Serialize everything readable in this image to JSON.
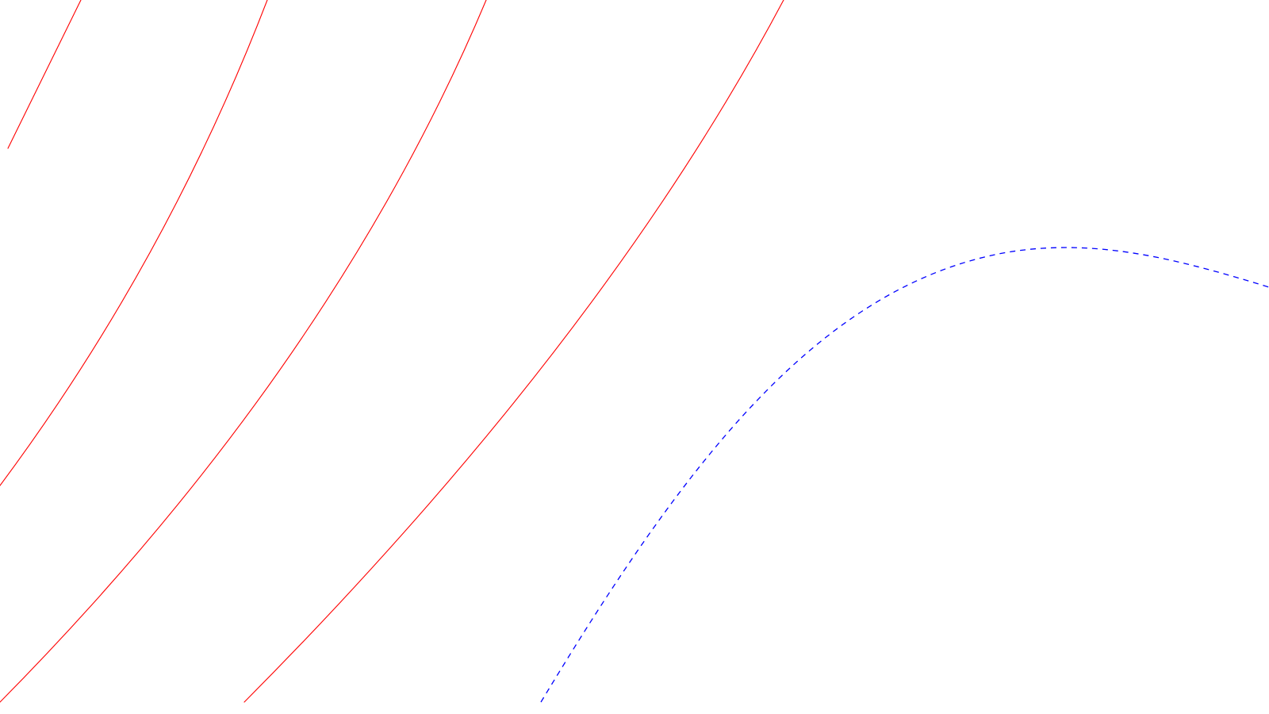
{
  "diagram": {
    "background_color": "#ffffff",
    "red_curves": {
      "color": "#ff0000",
      "style": "solid",
      "count": 4
    },
    "blue_curve": {
      "color": "#0000ff",
      "style": "dashed"
    }
  }
}
